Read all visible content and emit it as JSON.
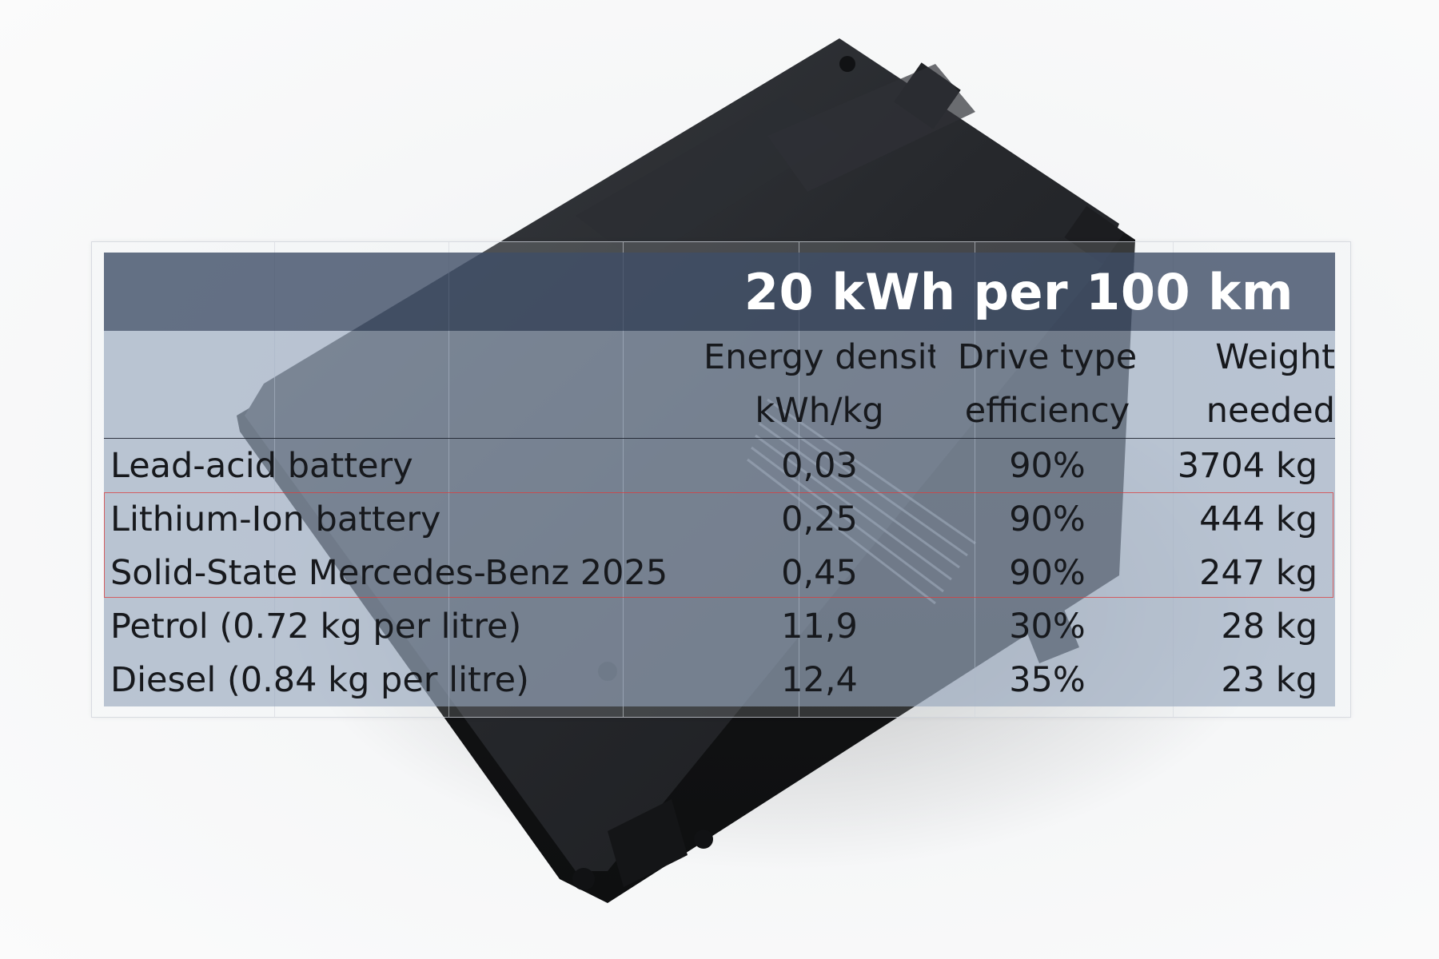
{
  "table": {
    "title": "20 kWh per 100 km",
    "headers": {
      "density": [
        "Energy density",
        "kWh/kg"
      ],
      "efficiency": [
        "Drive type",
        "efficiency"
      ],
      "weight": [
        "Weight",
        "needed"
      ]
    },
    "rows": [
      {
        "name": "Lead-acid battery",
        "density": "0,03",
        "efficiency": "90%",
        "weight": "3704 kg"
      },
      {
        "name": "Lithium-Ion battery",
        "density": "0,25",
        "efficiency": "90%",
        "weight": "444 kg"
      },
      {
        "name": "Solid-State Mercedes-Benz 2025",
        "density": "0,45",
        "efficiency": "90%",
        "weight": "247 kg"
      },
      {
        "name": "Petrol (0.72 kg per litre)",
        "density": "11,9",
        "efficiency": "30%",
        "weight": "28 kg"
      },
      {
        "name": "Diesel (0.84 kg per litre)",
        "density": "12,4",
        "efficiency": "35%",
        "weight": "23 kg"
      }
    ],
    "highlighted_rows": [
      1,
      2
    ],
    "highlight_color": "#dc3c3c",
    "title_bar_color": "#3e4e67",
    "cell_color": "#94a4bb"
  },
  "background": {
    "object": "battery-pack",
    "color": "#1e2023"
  }
}
